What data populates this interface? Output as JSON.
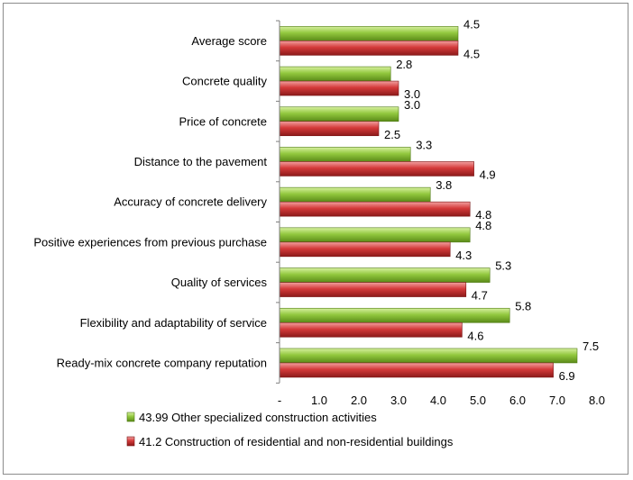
{
  "colors": {
    "series_green_light": "#d7f0a0",
    "series_green": "#92c83e",
    "series_green_dark": "#5a8a18",
    "series_red_light": "#f2a0a0",
    "series_red": "#d43a3a",
    "series_red_dark": "#8c1a1a",
    "axis": "#7f7f7f",
    "frame": "#8c8c8c"
  },
  "chart_data": {
    "type": "bar",
    "orientation": "horizontal",
    "title": "",
    "xlabel": "",
    "ylabel": "",
    "categories": [
      "Average score",
      "Concrete quality",
      "Price of concrete",
      "Distance to the pavement",
      "Accuracy of concrete delivery",
      "Positive experiences from previous purchase",
      "Quality of services",
      "Flexibility and adaptability of service",
      "Ready-mix concrete company reputation"
    ],
    "series": [
      {
        "name": "43.99 Other specialized construction activities",
        "color": "#92c83e",
        "values": [
          4.5,
          2.8,
          3.0,
          3.3,
          3.8,
          4.8,
          5.3,
          5.8,
          7.5
        ],
        "labels": [
          "4.5",
          "2.8",
          "3.0",
          "3.3",
          "3.8",
          "4.8",
          "5.3",
          "5.8",
          "7.5"
        ]
      },
      {
        "name": "41.2 Construction of residential and non-residential buildings",
        "color": "#d43a3a",
        "values": [
          4.5,
          3.0,
          2.5,
          4.9,
          4.8,
          4.3,
          4.7,
          4.6,
          6.9
        ],
        "labels": [
          "4.5",
          "3.0",
          "2.5",
          "4.9",
          "4.8",
          "4.3",
          "4.7",
          "4.6",
          "6.9"
        ]
      }
    ],
    "xlim": [
      0,
      8
    ],
    "ticks": [
      0,
      1,
      2,
      3,
      4,
      5,
      6,
      7,
      8
    ],
    "tick_labels": [
      "-",
      "1.0",
      "2.0",
      "3.0",
      "4.0",
      "5.0",
      "6.0",
      "7.0",
      "8.0"
    ],
    "grid": false,
    "legend_position": "bottom-left"
  }
}
